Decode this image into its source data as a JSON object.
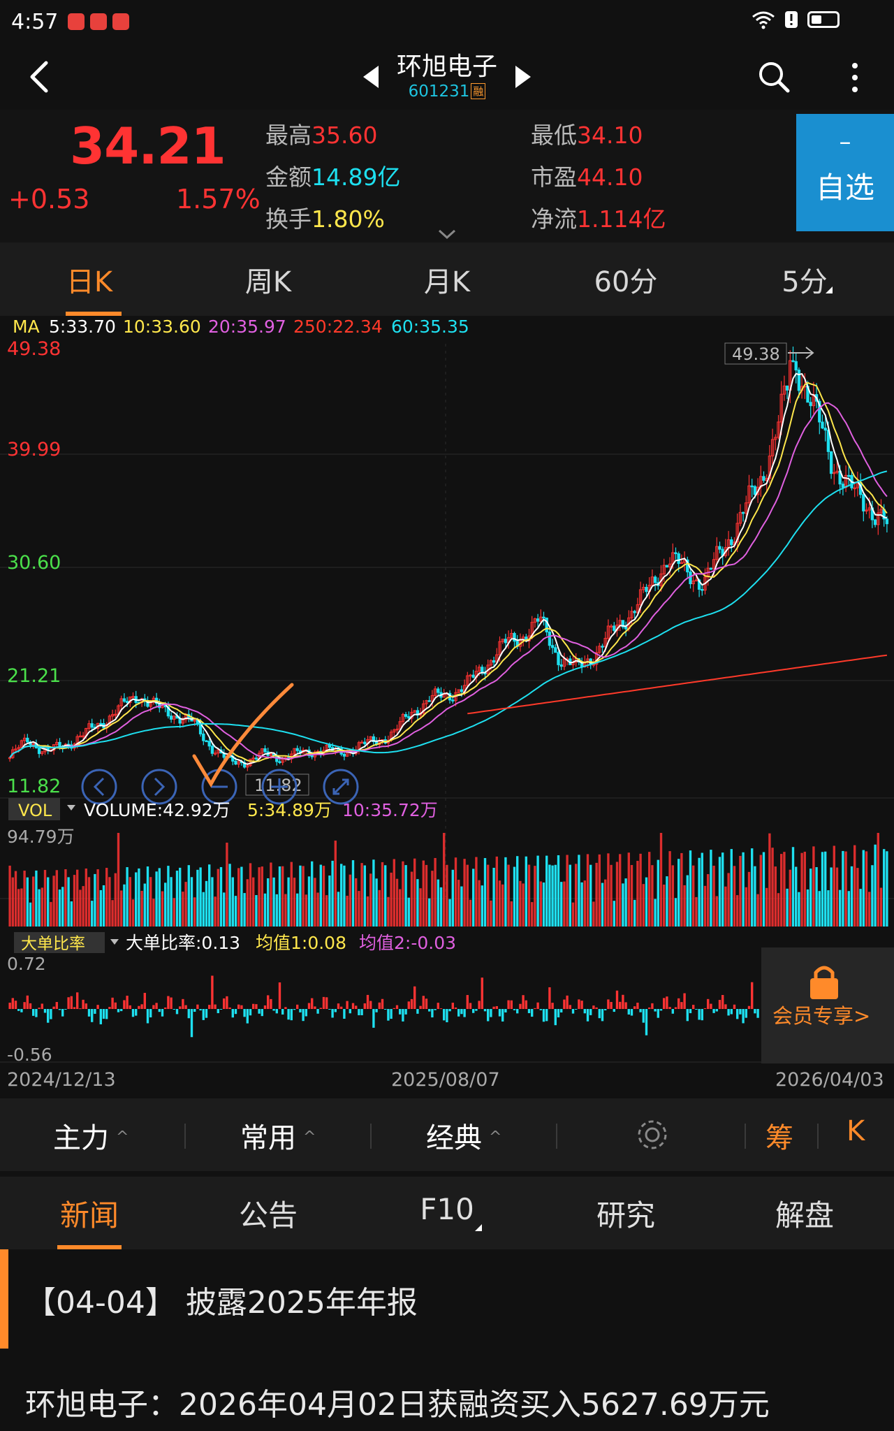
{
  "status_bar": {
    "time": "4:57"
  },
  "header": {
    "stock_name": "环旭电子",
    "stock_code": "601231",
    "margin_badge": "融"
  },
  "quote": {
    "price": "34.21",
    "change": "+0.53",
    "change_pct": "1.57%",
    "stats": {
      "high_label": "最高",
      "high": "35.60",
      "low_label": "最低",
      "low": "34.10",
      "amount_label": "金额",
      "amount": "14.89亿",
      "pe_label": "市盈",
      "pe": "44.10",
      "turnover_label": "换手",
      "turnover": "1.80%",
      "netflow_label": "净流",
      "netflow": "1.114亿"
    },
    "watchlist_minus": "–",
    "watchlist_label": "自选"
  },
  "period_tabs": [
    "日K",
    "周K",
    "月K",
    "60分",
    "5分"
  ],
  "ma_legend": {
    "prefix": "MA",
    "ma5": "5:33.70",
    "ma10": "10:33.60",
    "ma20": "20:35.97",
    "ma250": "250:22.34",
    "ma60": "60:35.35"
  },
  "colors": {
    "up": "#ff3333",
    "down": "#1ee0f0",
    "ma5": "#ffffff",
    "ma10": "#ffe74c",
    "ma20": "#e060e0",
    "ma60": "#1ee0f0",
    "ma250": "#ff3a2a",
    "accent": "#ff8a2a",
    "watch_button": "#1a8fd0"
  },
  "main_chart": {
    "y_ticks": [
      "49.38",
      "39.99",
      "30.60",
      "21.21",
      "11.82"
    ],
    "max_marker": "49.38",
    "min_marker": "11.82"
  },
  "volume_panel": {
    "name": "VOL",
    "volume": "VOLUME:42.92万",
    "ma5": "5:34.89万",
    "ma10": "10:35.72万",
    "y_top": "94.79万"
  },
  "ratio_panel": {
    "name": "大单比率",
    "value": "大单比率:0.13",
    "avg1": "均值1:0.08",
    "avg2": "均值2:-0.03",
    "y_top": "0.72",
    "y_bottom": "-0.56",
    "member_lock": "会员专享>"
  },
  "x_dates": [
    "2024/12/13",
    "2025/08/07",
    "2026/04/03"
  ],
  "chart_data": {
    "type": "candlestick",
    "y_range": [
      11.82,
      49.38
    ],
    "x_start": "2024/12/13",
    "x_mid": "2025/08/07",
    "x_end": "2026/04/03",
    "max_high": 49.38,
    "min_low": 11.82,
    "close_trend": [
      14.2,
      15.8,
      14.6,
      15.3,
      16.1,
      17.2,
      18.4,
      19.6,
      18.5,
      17.9,
      17.2,
      15.2,
      13.8,
      13.9,
      14.5,
      14.2,
      14.6,
      14.9,
      14.6,
      15.1,
      15.6,
      16.3,
      18.1,
      19.2,
      19.6,
      20.4,
      22.1,
      23.8,
      24.6,
      25.9,
      22.9,
      21.8,
      23.1,
      25.0,
      26.7,
      28.6,
      31.4,
      30.1,
      29.2,
      32.0,
      34.8,
      37.6,
      42.5,
      48.2,
      44.0,
      39.6,
      37.1,
      35.8,
      34.21
    ]
  },
  "bottom_bar": {
    "items": [
      "主力",
      "常用",
      "经典"
    ],
    "chip_label": "筹",
    "k_label": "K"
  },
  "news_tabs": [
    "新闻",
    "公告",
    "F10",
    "研究",
    "解盘"
  ],
  "news": [
    "【04-04】 披露2025年年报",
    "环旭电子：2026年04月02日获融资买入5627.69万元"
  ]
}
